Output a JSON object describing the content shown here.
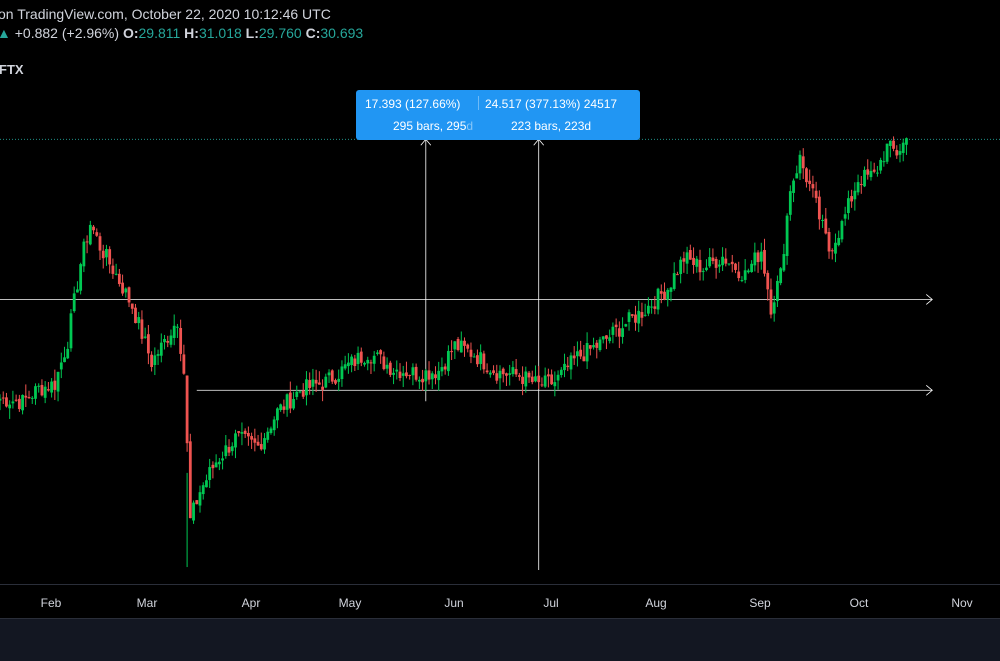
{
  "header": {
    "title_line": "on TradingView.com, October 22, 2020 10:12:46 UTC",
    "change": "+0.882 (+2.96%)",
    "open_label": "O:",
    "open": "29.811",
    "high_label": "H:",
    "high": "31.018",
    "low_label": "L:",
    "low": "29.760",
    "close_label": "C:",
    "close": "30.693",
    "up_arrow": "▲"
  },
  "symbol": "FTX",
  "colors": {
    "background": "#000000",
    "up_candle": "#26a69a",
    "up_candle_bright": "#00c853",
    "down_candle": "#ef5350",
    "tooltip_bg": "#2196f3",
    "guide_line": "#ffffff",
    "last_price_line": "#26a69a"
  },
  "measure_tooltip": {
    "left_price": "17.393 (127.66%)",
    "left_bars": "295 bars, 295",
    "left_bars_suffix": "d",
    "right_price": "24.517 (377.13%) 24517",
    "right_bars": "223 bars, 223d"
  },
  "x_axis": {
    "ticks": [
      "Feb",
      "Mar",
      "Apr",
      "May",
      "Jun",
      "Jul",
      "Aug",
      "Sep",
      "Oct",
      "Nov"
    ]
  },
  "chart_data": {
    "type": "candlestick",
    "symbol": "FTX",
    "x_range": [
      "2020-01-15",
      "2020-11-20"
    ],
    "y_range": [
      4.5,
      31.5
    ],
    "last_price": 30.693,
    "price_levels": [
      21.0,
      15.5
    ],
    "measure_start_dates": [
      "2020-05-26",
      "2020-06-30"
    ],
    "measure_top_price": 30.7,
    "anchors": [
      [
        "2020-01-15",
        15.0
      ],
      [
        "2020-01-22",
        14.8
      ],
      [
        "2020-01-27",
        15.6
      ],
      [
        "2020-02-01",
        15.9
      ],
      [
        "2020-02-05",
        18.5
      ],
      [
        "2020-02-09",
        23.2
      ],
      [
        "2020-02-12",
        25.6
      ],
      [
        "2020-02-15",
        24.2
      ],
      [
        "2020-02-20",
        22.5
      ],
      [
        "2020-02-25",
        20.6
      ],
      [
        "2020-03-02",
        17.2
      ],
      [
        "2020-03-05",
        18.1
      ],
      [
        "2020-03-10",
        19.8
      ],
      [
        "2020-03-12",
        16.6
      ],
      [
        "2020-03-14",
        7.6
      ],
      [
        "2020-03-17",
        9.4
      ],
      [
        "2020-03-22",
        11.2
      ],
      [
        "2020-03-28",
        12.6
      ],
      [
        "2020-04-04",
        12.1
      ],
      [
        "2020-04-10",
        14.2
      ],
      [
        "2020-04-17",
        15.5
      ],
      [
        "2020-04-25",
        16.0
      ],
      [
        "2020-05-02",
        17.0
      ],
      [
        "2020-05-08",
        17.8
      ],
      [
        "2020-05-16",
        16.8
      ],
      [
        "2020-05-24",
        16.5
      ],
      [
        "2020-05-30",
        16.7
      ],
      [
        "2020-06-04",
        18.2
      ],
      [
        "2020-06-10",
        17.7
      ],
      [
        "2020-06-17",
        16.6
      ],
      [
        "2020-06-24",
        16.4
      ],
      [
        "2020-06-30",
        15.8
      ],
      [
        "2020-07-05",
        16.0
      ],
      [
        "2020-07-12",
        17.5
      ],
      [
        "2020-07-19",
        18.3
      ],
      [
        "2020-07-26",
        19.4
      ],
      [
        "2020-08-02",
        20.4
      ],
      [
        "2020-08-09",
        21.7
      ],
      [
        "2020-08-14",
        23.5
      ],
      [
        "2020-08-20",
        22.9
      ],
      [
        "2020-08-26",
        23.6
      ],
      [
        "2020-09-02",
        22.5
      ],
      [
        "2020-09-07",
        24.0
      ],
      [
        "2020-09-10",
        20.6
      ],
      [
        "2020-09-13",
        22.5
      ],
      [
        "2020-09-16",
        27.8
      ],
      [
        "2020-09-19",
        29.5
      ],
      [
        "2020-09-23",
        27.3
      ],
      [
        "2020-09-28",
        24.0
      ],
      [
        "2020-10-02",
        25.5
      ],
      [
        "2020-10-07",
        28.3
      ],
      [
        "2020-10-12",
        28.5
      ],
      [
        "2020-10-16",
        30.2
      ],
      [
        "2020-10-19",
        29.9
      ],
      [
        "2020-10-22",
        30.69
      ]
    ]
  }
}
